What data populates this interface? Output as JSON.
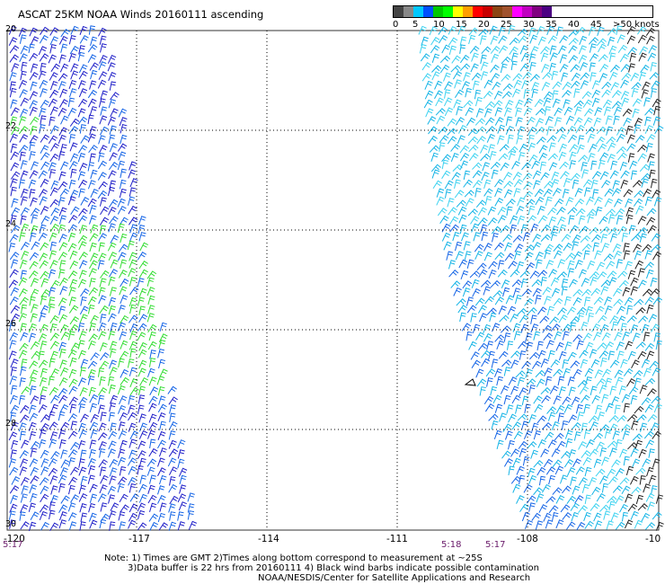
{
  "title": "ASCAT 25KM NOAA Winds 20160111 ascending",
  "legend": {
    "unit_label": "knots",
    "labels": [
      "0",
      "5",
      "10",
      "15",
      "20",
      "25",
      "30",
      "35",
      "40",
      "45",
      ">50"
    ],
    "colors": [
      "#444444",
      "#888888",
      "#00c8ff",
      "#0050ff",
      "#00c800",
      "#00ff00",
      "#ffff00",
      "#ffa000",
      "#ff0000",
      "#c80000",
      "#8b4513",
      "#a0522d",
      "#ff00ff",
      "#c000c0",
      "#800080",
      "#4b0082"
    ]
  },
  "map": {
    "lat_labels": [
      "20",
      "22",
      "24",
      "26",
      "28",
      "30"
    ],
    "lon_labels": [
      "-120",
      "-117",
      "-114",
      "-111",
      "-108",
      "-10"
    ],
    "time_labels": [
      "5:17",
      "5:18",
      "5:17"
    ],
    "wind_colors": {
      "dark_blue": "#1e1ec8",
      "blue": "#1464e6",
      "cyan": "#14b4e6",
      "light_cyan": "#3cd2f0",
      "green": "#32dc32",
      "black": "#222222"
    }
  },
  "notes": {
    "line1": "Note: 1) Times are GMT 2)Times along bottom correspond to measurement at ~25S",
    "line2": "3)Data buffer is 22 hrs from 20160111 4) Black wind barbs indicate possible contamination",
    "line3": "NOAA/NESDIS/Center for Satellite Applications and Research"
  }
}
